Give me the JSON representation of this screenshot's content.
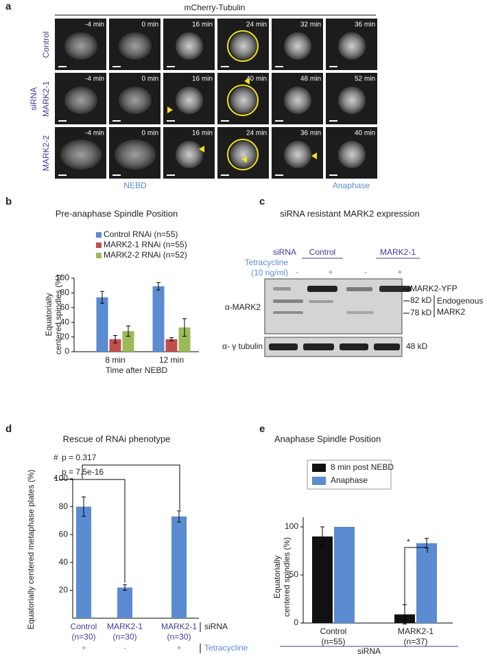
{
  "panels": {
    "a": {
      "label": "a",
      "title": "mCherry-Tubulin",
      "group_label": "siRNA",
      "rows": [
        {
          "label": "Control",
          "times": [
            "-4 min",
            "0 min",
            "16 min",
            "24 min",
            "32 min",
            "36 min"
          ]
        },
        {
          "label": "MARK2-1",
          "times": [
            "-4 min",
            "0 min",
            "16 min",
            "40 min",
            "48 min",
            "52 min"
          ]
        },
        {
          "label": "MARK2-2",
          "times": [
            "-4 min",
            "0 min",
            "16 min",
            "24 min",
            "36 min",
            "40 min"
          ]
        }
      ],
      "markers": [
        "NEBD",
        "Anaphase"
      ]
    },
    "b": {
      "label": "b"
    },
    "c": {
      "label": "c",
      "title": "siRNA resistant MARK2 expression",
      "sirna_label": "siRNA",
      "groups": [
        "Control",
        "MARK2-1"
      ],
      "tet_label": "Tetracycline",
      "tet_conc": "(10 ng/ml)",
      "tet_states": [
        "-",
        "+",
        "-",
        "+"
      ],
      "antibodies": [
        "α-MARK2",
        "α- γ tubulin"
      ],
      "band_labels": [
        "MARK2-YFP",
        "82 kD",
        "78 kD"
      ],
      "endogenous": [
        "Endogenous",
        "MARK2"
      ],
      "loading": "48 kD"
    },
    "d": {
      "label": "d"
    },
    "e": {
      "label": "e"
    }
  },
  "chart_data": [
    {
      "type": "bar",
      "title": "Pre-anaphase Spindle Position",
      "y_label": [
        "Equatorially",
        "centered spindles (%)"
      ],
      "x_label": "Time after NEBD",
      "categories": [
        "8 min",
        "12 min"
      ],
      "series": [
        {
          "name": "Control RNAi (n=55)",
          "color": "#5b8bd0",
          "values": [
            74,
            89
          ],
          "errors": [
            8,
            5
          ]
        },
        {
          "name": "MARK2-1 RNAi (n=55)",
          "color": "#c0504d",
          "values": [
            17,
            17
          ],
          "errors": [
            5,
            2
          ]
        },
        {
          "name": "MARK2-2 RNAi (n=52)",
          "color": "#9bbb59",
          "values": [
            28,
            33
          ],
          "errors": [
            7,
            12
          ]
        }
      ],
      "ylim": [
        0,
        100
      ],
      "yticks": [
        0,
        20,
        40,
        60,
        80,
        100
      ]
    },
    {
      "type": "bar",
      "title": "Rescue of RNAi phenotype",
      "y_label": [
        "Equatorially centered metaphase plates (%)"
      ],
      "categories": [
        "Control",
        "MARK2-1",
        "MARK2-1"
      ],
      "n_labels": [
        "(n=30)",
        "(n=30)",
        "(n=30)"
      ],
      "tetracycline": [
        "+",
        "-",
        "+"
      ],
      "row_labels": [
        "siRNA",
        "Tetracycline"
      ],
      "values": [
        80,
        22,
        73
      ],
      "errors": [
        7,
        2,
        4
      ],
      "color": "#5b8bd0",
      "annotations": [
        "#",
        "p = 0.317",
        "*",
        "p = 7.5e-16"
      ],
      "ylim": [
        0,
        100
      ],
      "yticks": [
        20,
        40,
        60,
        80,
        100
      ]
    },
    {
      "type": "bar",
      "title": "Anaphase Spindle Position",
      "y_label": [
        "Equatorially",
        "centered spindles (%)"
      ],
      "x_label": "siRNA",
      "categories": [
        "Control",
        "MARK2-1"
      ],
      "n_labels": [
        "(n=55)",
        "(n=37)"
      ],
      "series": [
        {
          "name": "8 min post NEBD",
          "color": "#111111",
          "values": [
            90,
            9
          ],
          "errors": [
            10,
            10
          ]
        },
        {
          "name": "Anaphase",
          "color": "#5b8bd0",
          "values": [
            100,
            83
          ],
          "errors": [
            null,
            5
          ]
        }
      ],
      "annotations": [
        "*"
      ],
      "ylim": [
        0,
        110
      ],
      "yticks": [
        0,
        50,
        100
      ]
    }
  ]
}
